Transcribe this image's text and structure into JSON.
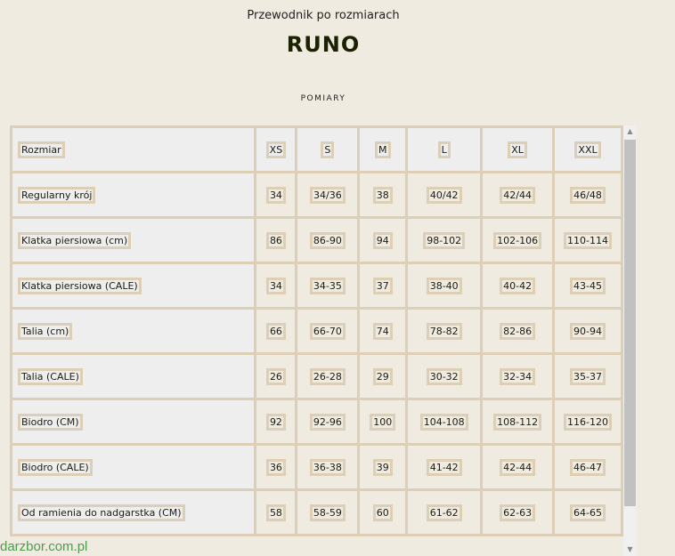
{
  "header": {
    "subtitle": "Przewodnik po rozmiarach",
    "title": "RUNO",
    "section": "POMIARY"
  },
  "table": {
    "headers": [
      "Rozmiar",
      "XS",
      "S",
      "M",
      "L",
      "XL",
      "XXL"
    ],
    "rows": [
      [
        "Regularny krój",
        "34",
        "34/36",
        "38",
        "40/42",
        "42/44",
        "46/48"
      ],
      [
        "Klatka piersiowa (cm)",
        "86",
        "86-90",
        "94",
        "98-102",
        "102-106",
        "110-114"
      ],
      [
        "Klatka piersiowa (CALE)",
        "34",
        "34-35",
        "37",
        "38-40",
        "40-42",
        "43-45"
      ],
      [
        "Talia (cm)",
        "66",
        "66-70",
        "74",
        "78-82",
        "82-86",
        "90-94"
      ],
      [
        "Talia (CALE)",
        "26",
        "26-28",
        "29",
        "30-32",
        "32-34",
        "35-37"
      ],
      [
        "Biodro (CM)",
        "92",
        "92-96",
        "100",
        "104-108",
        "108-112",
        "116-120"
      ],
      [
        "Biodro (CALE)",
        "36",
        "36-38",
        "39",
        "41-42",
        "42-44",
        "46-47"
      ],
      [
        "Od ramienia do nadgarstka (CM)",
        "58",
        "58-59",
        "60",
        "61-62",
        "62-63",
        "64-65"
      ]
    ]
  },
  "watermark": "darzbor.com.pl"
}
